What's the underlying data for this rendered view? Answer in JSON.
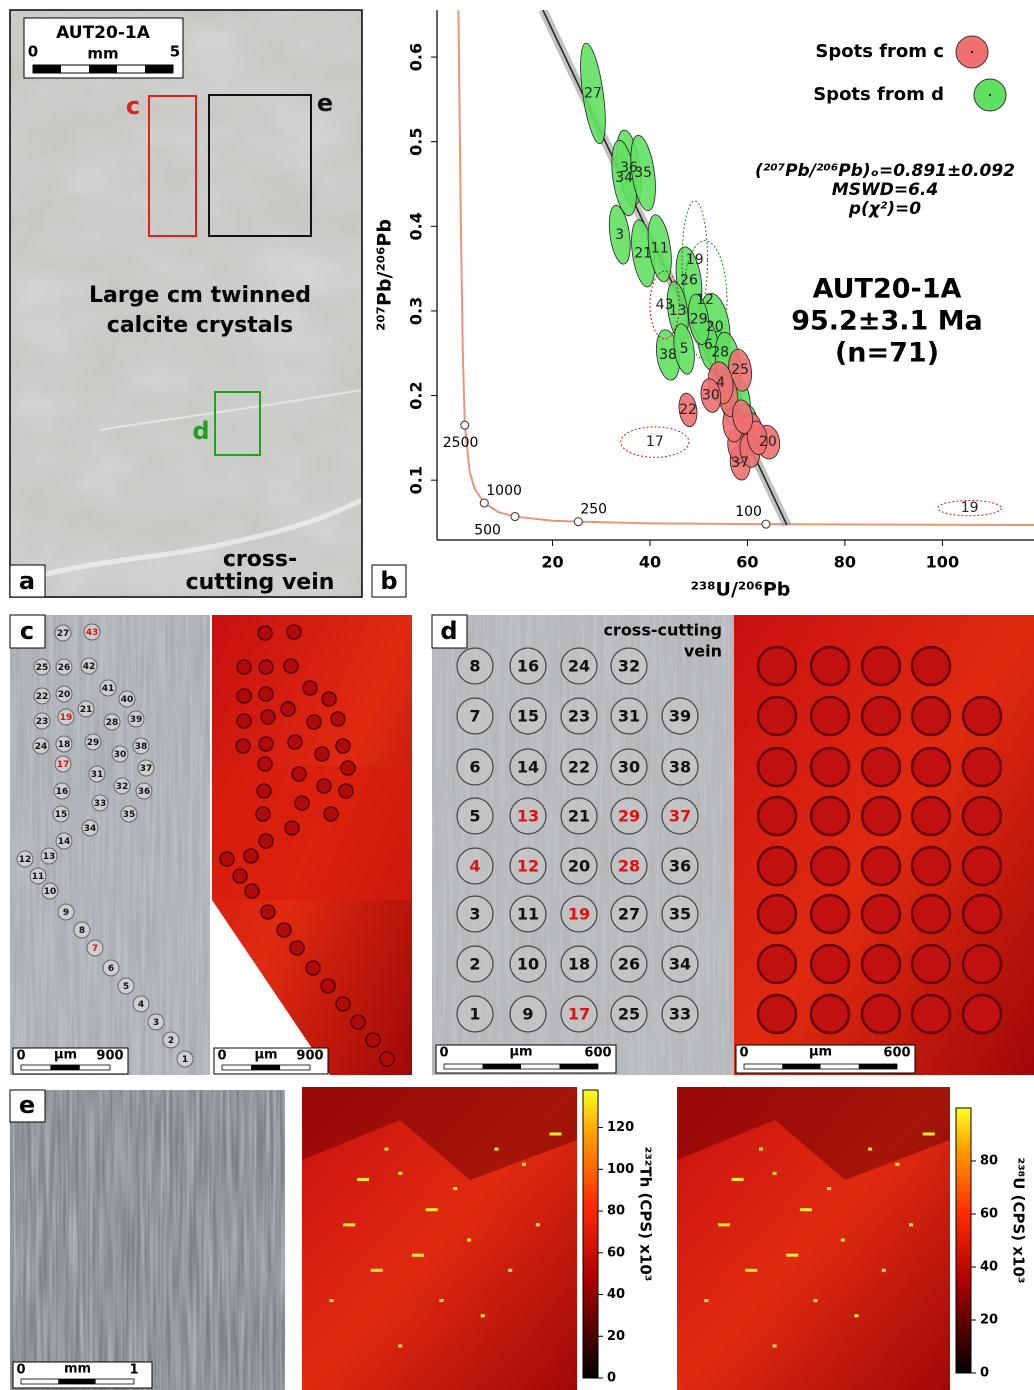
{
  "panel_a": {
    "letter": "a",
    "sample": "AUT20-1A",
    "scale": {
      "start": "0",
      "unit": "mm",
      "end": "5"
    },
    "boxes": [
      {
        "label": "c",
        "color": "#e02020"
      },
      {
        "label": "e",
        "color": "#111111"
      },
      {
        "label": "d",
        "color": "#22a022"
      }
    ],
    "caption": [
      "Large cm twinned",
      "calcite crystals"
    ],
    "vein": [
      "cross-",
      "cutting vein"
    ]
  },
  "panel_b": {
    "letter": "b"
  },
  "chart_data": [
    {
      "type": "scatter",
      "xlabel": "²³⁸U/²⁰⁶Pb",
      "ylabel": "²⁰⁷Pb/²⁰⁶Pb",
      "xlim": [
        -3.7,
        118.8
      ],
      "ylim": [
        0.0293,
        0.6556
      ],
      "xticks": [
        20,
        40,
        60,
        80,
        100
      ],
      "yticks": [
        0.1,
        0.2,
        0.3,
        0.4,
        0.5,
        0.6
      ],
      "legend": "upper right",
      "series": [
        {
          "name": "Spots from c",
          "color": "#f07070",
          "x": [
            58.5,
            47.8,
            41,
            105.6,
            64.2,
            58.5,
            43,
            59.5,
            58,
            61,
            57,
            60.5,
            56,
            62,
            59,
            54.5,
            52.5
          ],
          "values": [
            0.23,
            0.183,
            0.145,
            0.067,
            0.145,
            0.12,
            0.307,
            0.153,
            0.14,
            0.16,
            0.165,
            0.135,
            0.2,
            0.15,
            0.175,
            0.215,
            0.2
          ],
          "sx": [
            2.3,
            1.8,
            7,
            6.5,
            2.4,
            2,
            3,
            2,
            2,
            2,
            2,
            2,
            2,
            2,
            2,
            2.5,
            2
          ],
          "sy": [
            0.025,
            0.02,
            0.018,
            0.009,
            0.02,
            0.02,
            0.04,
            0.025,
            0.02,
            0.02,
            0.02,
            0.02,
            0.025,
            0.02,
            0.02,
            0.025,
            0.02
          ],
          "labels": [
            "25",
            "22",
            "17",
            "19",
            "20",
            "37",
            "43",
            null,
            null,
            null,
            null,
            null,
            null,
            null,
            null,
            "4",
            "30"
          ],
          "excluded": [
            false,
            false,
            true,
            true,
            false,
            false,
            true,
            false,
            false,
            false,
            false,
            false,
            false,
            false,
            false,
            false,
            false
          ]
        },
        {
          "name": "Spots from d",
          "color": "#60e060",
          "x": [
            28.3,
            35.7,
            34.7,
            38.6,
            33.8,
            38.6,
            42,
            48,
            49.2,
            51.3,
            45.7,
            53.3,
            43.7,
            54.4,
            47,
            52,
            57,
            58.5,
            60,
            50,
            56
          ],
          "values": [
            0.557,
            0.469,
            0.457,
            0.463,
            0.39,
            0.368,
            0.374,
            0.336,
            0.36,
            0.313,
            0.3,
            0.281,
            0.248,
            0.251,
            0.255,
            0.26,
            0.189,
            0.195,
            0.17,
            0.29,
            0.24
          ],
          "sx": [
            2.1,
            2.3,
            2.3,
            2.3,
            2,
            2.2,
            2.2,
            2.5,
            2.6,
            4.5,
            2,
            3,
            2.3,
            2.2,
            2,
            2,
            2.2,
            2,
            2,
            2,
            2.5
          ],
          "sy": [
            0.06,
            0.045,
            0.045,
            0.045,
            0.035,
            0.04,
            0.04,
            0.04,
            0.07,
            0.07,
            0.035,
            0.04,
            0.03,
            0.025,
            0.03,
            0.03,
            0.025,
            0.025,
            0.02,
            0.03,
            0.035
          ],
          "labels": [
            "27",
            "36",
            "34",
            "35",
            "3",
            "21",
            "11",
            "26",
            "19",
            "12",
            "13",
            "20",
            "38",
            "28",
            "5",
            "6",
            null,
            null,
            null,
            "29",
            null
          ],
          "excluded": [
            false,
            false,
            false,
            false,
            false,
            false,
            false,
            false,
            true,
            true,
            false,
            false,
            false,
            false,
            false,
            false,
            false,
            false,
            false,
            false,
            false
          ]
        }
      ],
      "concordia": {
        "x": [
          0.7,
          1.2,
          1.6,
          2.0,
          3,
          4,
          6,
          9,
          12.3,
          20,
          25.3,
          40,
          63.8,
          118.8
        ],
        "y": [
          0.655,
          0.4,
          0.25,
          0.165,
          0.11,
          0.09,
          0.073,
          0.062,
          0.057,
          0.052,
          0.051,
          0.049,
          0.048,
          0.047
        ]
      },
      "concordia_ages": {
        "x": [
          2.0,
          6,
          12.3,
          25.3,
          63.8
        ],
        "y": [
          0.165,
          0.073,
          0.057,
          0.051,
          0.048
        ],
        "ages": [
          2500,
          1000,
          500,
          250,
          100
        ]
      },
      "regression": {
        "x": [
          18,
          68.1
        ],
        "y": [
          0.656,
          0.047
        ]
      },
      "annotations": [
        "(²⁰⁷Pb/²⁰⁶Pb)ₒ=0.891±0.092",
        "MSWD=6.4",
        "p(χ²)=0"
      ],
      "result": [
        "AUT20-1A",
        "95.2±3.1 Ma",
        "(n=71)"
      ]
    },
    {
      "type": "colorbar",
      "label": "²³²Th (CPS) x10³",
      "ylim": [
        0,
        138
      ],
      "yticks": [
        0,
        20,
        40,
        60,
        80,
        100,
        120
      ]
    },
    {
      "type": "colorbar",
      "label": "²³⁸U (CPS) x10³",
      "ylim": [
        0,
        100
      ],
      "yticks": [
        0,
        20,
        40,
        60,
        80
      ]
    }
  ],
  "panel_c": {
    "letter": "c",
    "spots": [
      {
        "label": "27"
      },
      {
        "label": "43",
        "highlight": true
      },
      {
        "label": "25"
      },
      {
        "label": "26"
      },
      {
        "label": "42"
      },
      {
        "label": "22"
      },
      {
        "label": "20"
      },
      {
        "label": "41"
      },
      {
        "label": "40"
      },
      {
        "label": "21"
      },
      {
        "label": "23"
      },
      {
        "label": "19",
        "highlight": true
      },
      {
        "label": "28"
      },
      {
        "label": "39"
      },
      {
        "label": "24"
      },
      {
        "label": "18"
      },
      {
        "label": "29"
      },
      {
        "label": "30"
      },
      {
        "label": "38"
      },
      {
        "label": "17",
        "highlight": true
      },
      {
        "label": "31"
      },
      {
        "label": "37"
      },
      {
        "label": "16"
      },
      {
        "label": "32"
      },
      {
        "label": "36"
      },
      {
        "label": "33"
      },
      {
        "label": "15"
      },
      {
        "label": "35"
      },
      {
        "label": "34"
      },
      {
        "label": "14"
      },
      {
        "label": "12"
      },
      {
        "label": "13"
      },
      {
        "label": "11"
      },
      {
        "label": "10"
      },
      {
        "label": "9"
      },
      {
        "label": "8"
      },
      {
        "label": "7",
        "highlight": true
      },
      {
        "label": "6"
      },
      {
        "label": "5"
      },
      {
        "label": "4"
      },
      {
        "label": "3"
      },
      {
        "label": "2"
      },
      {
        "label": "1"
      }
    ],
    "scales": [
      {
        "start": "0",
        "unit": "µm",
        "end": "900"
      },
      {
        "start": "0",
        "unit": "µm",
        "end": "900"
      }
    ]
  },
  "panel_d": {
    "letter": "d",
    "note": [
      "cross-cutting",
      "vein"
    ],
    "rows": [
      [
        {
          "label": "8"
        },
        {
          "label": "16"
        },
        {
          "label": "24"
        },
        {
          "label": "32"
        }
      ],
      [
        {
          "label": "7"
        },
        {
          "label": "15"
        },
        {
          "label": "23"
        },
        {
          "label": "31"
        },
        {
          "label": "39"
        }
      ],
      [
        {
          "label": "6"
        },
        {
          "label": "14"
        },
        {
          "label": "22"
        },
        {
          "label": "30"
        },
        {
          "label": "38"
        }
      ],
      [
        {
          "label": "5"
        },
        {
          "label": "13",
          "highlight": true
        },
        {
          "label": "21"
        },
        {
          "label": "29",
          "highlight": true
        },
        {
          "label": "37",
          "highlight": true
        }
      ],
      [
        {
          "label": "4",
          "highlight": true
        },
        {
          "label": "12",
          "highlight": true
        },
        {
          "label": "20"
        },
        {
          "label": "28",
          "highlight": true
        },
        {
          "label": "36"
        }
      ],
      [
        {
          "label": "3"
        },
        {
          "label": "11"
        },
        {
          "label": "19",
          "highlight": true
        },
        {
          "label": "27"
        },
        {
          "label": "35"
        }
      ],
      [
        {
          "label": "2"
        },
        {
          "label": "10"
        },
        {
          "label": "18"
        },
        {
          "label": "26"
        },
        {
          "label": "34"
        }
      ],
      [
        {
          "label": "1"
        },
        {
          "label": "9"
        },
        {
          "label": "17",
          "highlight": true
        },
        {
          "label": "25"
        },
        {
          "label": "33"
        }
      ]
    ],
    "scales": [
      {
        "start": "0",
        "unit": "µm",
        "end": "600"
      },
      {
        "start": "0",
        "unit": "µm",
        "end": "600"
      }
    ]
  },
  "panel_e": {
    "letter": "e",
    "scale": {
      "start": "0",
      "unit": "mm",
      "end": "1"
    }
  }
}
